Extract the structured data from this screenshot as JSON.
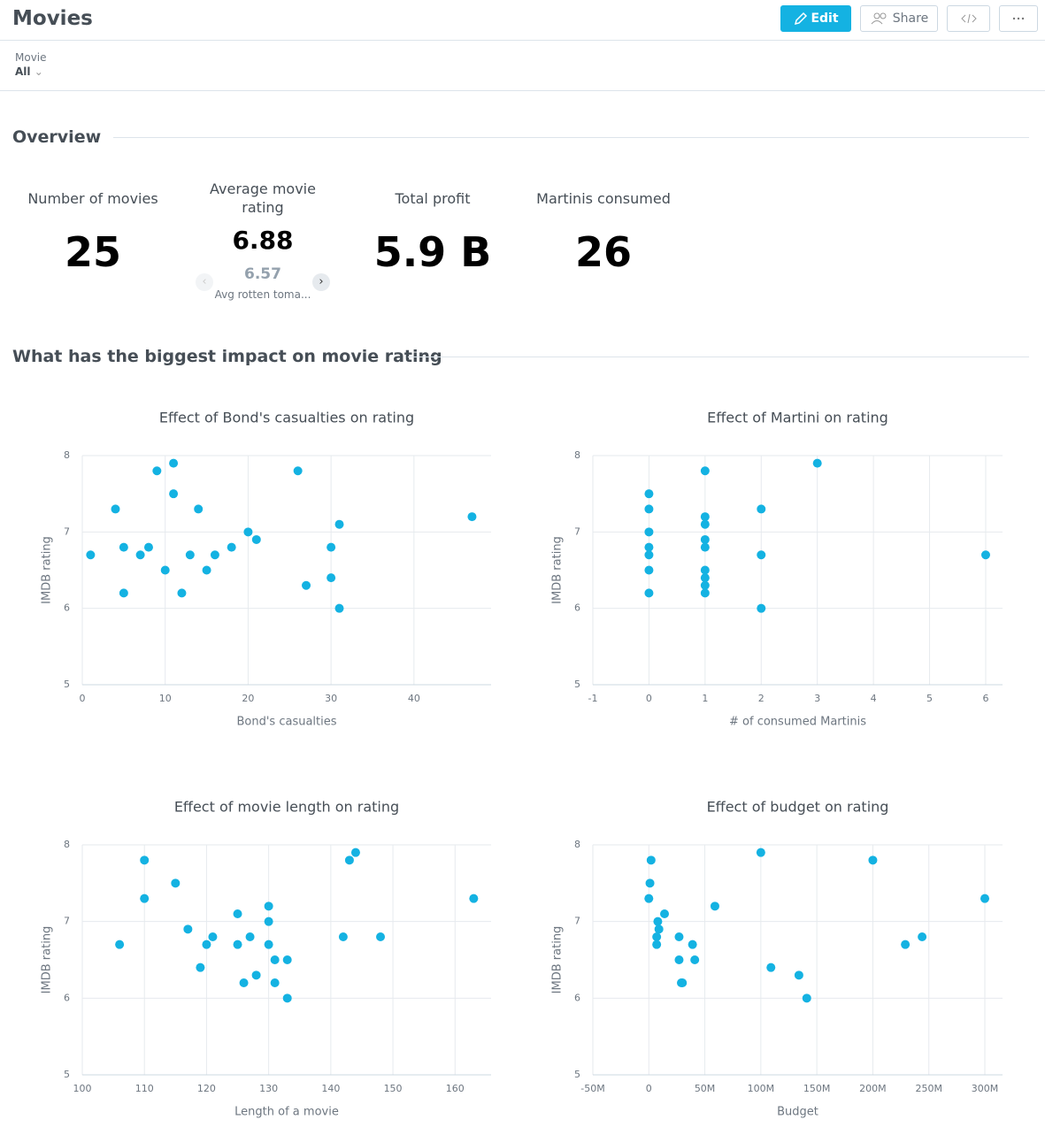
{
  "header": {
    "title": "Movies",
    "buttons": [
      "Edit",
      "Share"
    ]
  },
  "filter": {
    "label": "Movie",
    "value": "All"
  },
  "sections": [
    "Overview",
    "What has the biggest impact on movie rating"
  ],
  "kpis": [
    {
      "label": "Number of movies",
      "value": 25
    },
    {
      "label": "Average movie rating",
      "value": 6.88,
      "secondary_value": 6.57,
      "secondary_label": "Avg rotten toma..."
    },
    {
      "label": "Total profit",
      "value": "5.9 B"
    },
    {
      "label": "Martinis consumed",
      "value": 26
    }
  ],
  "chart_data": [
    {
      "type": "scatter",
      "title": "Effect of Bond's casualties on rating",
      "x_label": "Bond's casualties",
      "y_label": "IMDB rating",
      "color": "#14b2e2",
      "grid": true,
      "x": [
        1,
        4,
        5,
        5,
        7,
        8,
        9,
        10,
        11,
        11,
        12,
        13,
        14,
        15,
        16,
        18,
        20,
        21,
        26,
        27,
        30,
        30,
        31,
        31,
        47
      ],
      "values": [
        6.7,
        7.3,
        6.8,
        6.2,
        6.7,
        6.8,
        7.8,
        6.5,
        7.9,
        7.5,
        6.2,
        6.7,
        7.3,
        6.5,
        6.7,
        6.8,
        7.0,
        6.9,
        7.8,
        6.3,
        6.8,
        6.4,
        7.1,
        6.0,
        7.2
      ],
      "xlim": [
        0,
        49.3
      ],
      "ylim": [
        5,
        8
      ],
      "xticks": [
        0,
        10,
        20,
        30,
        40
      ],
      "yticks": [
        5,
        6,
        7,
        8
      ]
    },
    {
      "type": "scatter",
      "title": "Effect of Martini on rating",
      "x_label": "# of consumed Martinis",
      "y_label": "IMDB rating",
      "color": "#14b2e2",
      "grid": true,
      "x": [
        0,
        0,
        0,
        0,
        0,
        0,
        0,
        1,
        1,
        1,
        1,
        1,
        1,
        1,
        1,
        1,
        2,
        2,
        2,
        3,
        6
      ],
      "values": [
        7.5,
        7.3,
        7.0,
        6.8,
        6.7,
        6.5,
        6.2,
        7.8,
        7.2,
        7.1,
        6.9,
        6.8,
        6.5,
        6.4,
        6.3,
        6.2,
        7.3,
        6.7,
        6.0,
        7.9,
        6.7
      ],
      "xlim": [
        -1,
        6.3
      ],
      "ylim": [
        5,
        8
      ],
      "xticks": [
        -1,
        0,
        1,
        2,
        3,
        4,
        5,
        6
      ],
      "yticks": [
        5,
        6,
        7,
        8
      ]
    },
    {
      "type": "scatter",
      "title": "Effect of movie length on rating",
      "x_label": "Length of a movie",
      "y_label": "IMDB rating",
      "color": "#14b2e2",
      "grid": true,
      "x": [
        106,
        110,
        110,
        115,
        117,
        119,
        120,
        121,
        125,
        125,
        126,
        127,
        128,
        130,
        130,
        130,
        131,
        131,
        133,
        133,
        142,
        143,
        144,
        148,
        163
      ],
      "values": [
        6.7,
        7.8,
        7.3,
        7.5,
        6.9,
        6.4,
        6.7,
        6.8,
        7.1,
        6.7,
        6.2,
        6.8,
        6.3,
        7.2,
        7.0,
        6.7,
        6.5,
        6.2,
        6.5,
        6.0,
        6.8,
        7.8,
        7.9,
        6.8,
        7.3
      ],
      "xlim": [
        100,
        165.8
      ],
      "ylim": [
        5,
        8
      ],
      "xticks": [
        100,
        110,
        120,
        130,
        140,
        150,
        160
      ],
      "yticks": [
        5,
        6,
        7,
        8
      ]
    },
    {
      "type": "scatter",
      "title": "Effect of budget on rating",
      "x_label": "Budget",
      "y_label": "IMDB rating",
      "color": "#14b2e2",
      "grid": true,
      "x": [
        2000000,
        1000000,
        0,
        8000000,
        9000000,
        7000000,
        7000000,
        14000000,
        27000000,
        27000000,
        29000000,
        30000000,
        39000000,
        41000000,
        59000000,
        100000000,
        109000000,
        134000000,
        141000000,
        200000000,
        229000000,
        244000000,
        300000000
      ],
      "values": [
        7.8,
        7.5,
        7.3,
        7.0,
        6.9,
        6.8,
        6.7,
        7.1,
        6.8,
        6.5,
        6.2,
        6.2,
        6.7,
        6.5,
        7.2,
        7.9,
        6.4,
        6.3,
        6.0,
        7.8,
        6.7,
        6.8,
        7.3
      ],
      "xlim": [
        -50000000,
        315800000
      ],
      "ylim": [
        5,
        8
      ],
      "xticks": [
        {
          "value": -50000000,
          "label": "-50M"
        },
        0,
        {
          "value": 50000000,
          "label": "50M"
        },
        {
          "value": 100000000,
          "label": "100M"
        },
        {
          "value": 150000000,
          "label": "150M"
        },
        {
          "value": 200000000,
          "label": "200M"
        },
        {
          "value": 250000000,
          "label": "250M"
        },
        {
          "value": 300000000,
          "label": "300M"
        }
      ],
      "yticks": [
        5,
        6,
        7,
        8
      ]
    }
  ]
}
